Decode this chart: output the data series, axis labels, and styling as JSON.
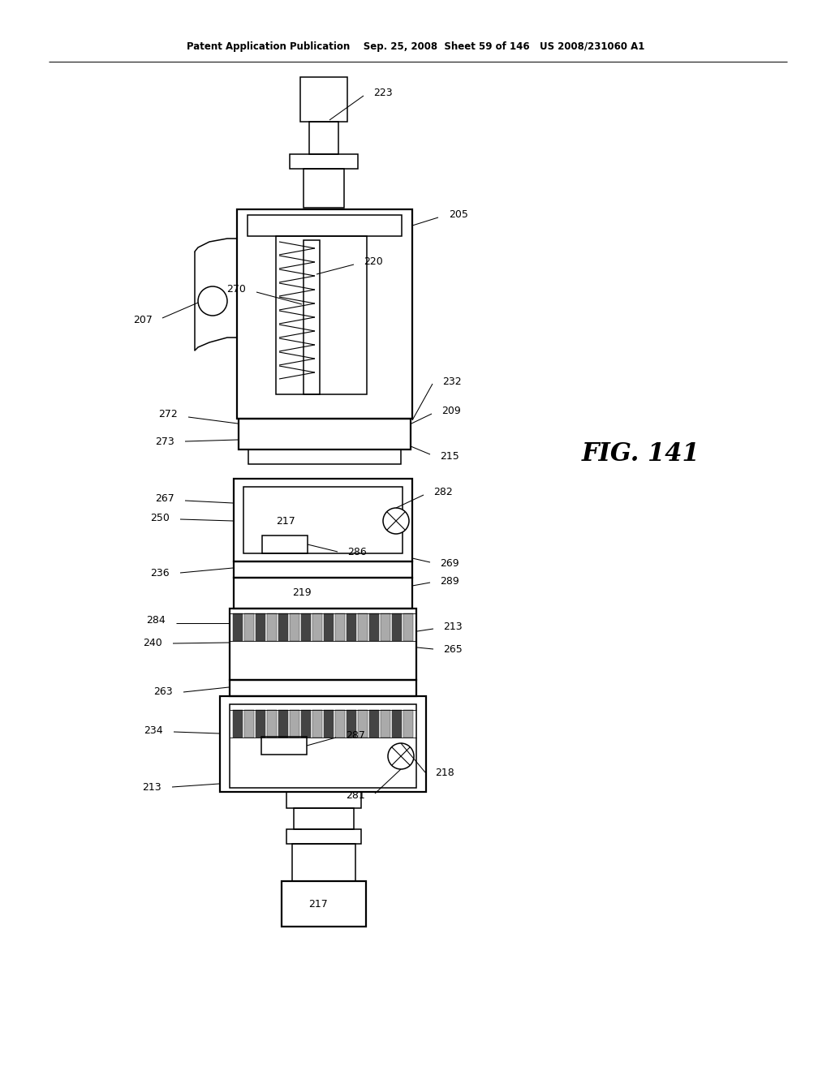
{
  "bg_color": "#ffffff",
  "page_width": 10.24,
  "page_height": 13.2,
  "header": "Patent Application Publication    Sep. 25, 2008  Sheet 59 of 146   US 2008/231060 A1",
  "fig_label": "FIG. 141",
  "lc": "#000000",
  "lw_thin": 0.7,
  "lw_med": 1.1,
  "lw_thick": 1.6,
  "header_fontsize": 8.5,
  "label_fontsize": 9,
  "fig_label_fontsize": 22
}
